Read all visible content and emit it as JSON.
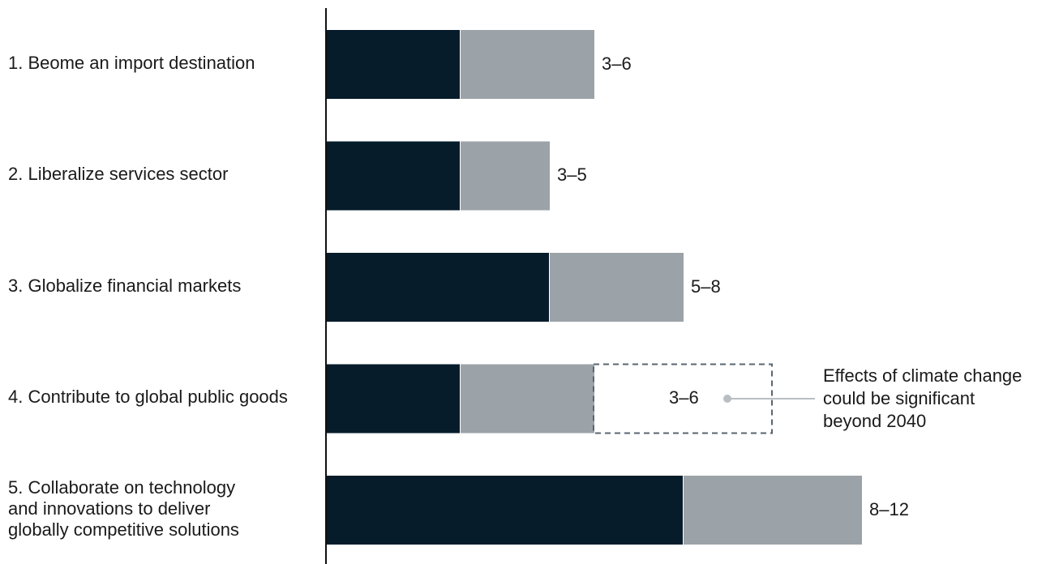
{
  "chart_data": {
    "type": "bar",
    "orientation": "horizontal",
    "stacked": true,
    "categories": [
      "1. Beome an import destination",
      "2. Liberalize services sector",
      "3. Globalize financial markets",
      "4. Contribute to global public goods",
      "5. Collaborate on technology\nand innovations to deliver\nglobally competitive solutions"
    ],
    "series": [
      {
        "color": "#061c2b",
        "values": [
          3,
          3,
          5,
          3,
          8
        ]
      },
      {
        "color": "#9ca3a8",
        "values": [
          3,
          2,
          3,
          3,
          4
        ]
      }
    ],
    "value_labels": [
      "3–6",
      "3–5",
      "5–8",
      "",
      "8–12"
    ],
    "extension": {
      "category_index": 3,
      "from": 6,
      "to": 10,
      "label": "3–6",
      "annotation": "Effects of climate change\ncould be significant\nbeyond 2040"
    },
    "xlim": [
      0,
      12
    ],
    "grid": false,
    "legend": "none"
  }
}
